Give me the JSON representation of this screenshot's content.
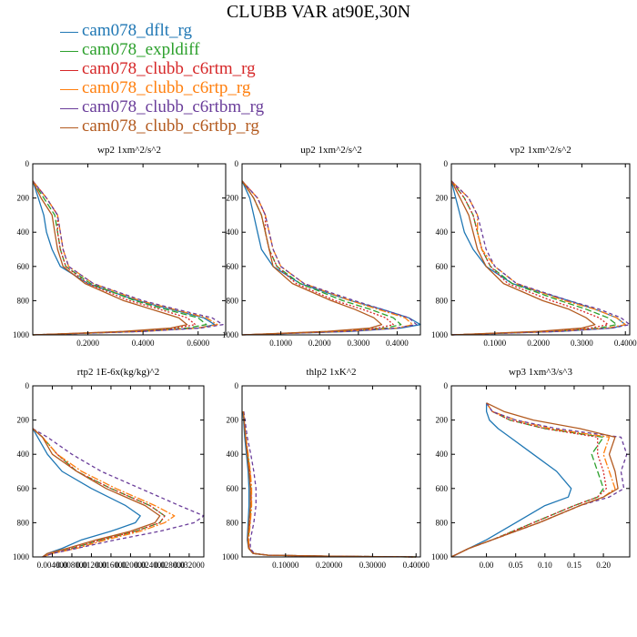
{
  "title": "CLUBB VAR at90E,30N",
  "legend": [
    {
      "name": "cam078_dflt_rg",
      "color": "#1f77b4"
    },
    {
      "name": "cam078_expldiff",
      "color": "#2ca02c"
    },
    {
      "name": "cam078_clubb_c6rtm_rg",
      "color": "#d62728"
    },
    {
      "name": "cam078_clubb_c6rtp_rg",
      "color": "#ff7f0e"
    },
    {
      "name": "cam078_clubb_c6rtbm_rg",
      "color": "#6a3d9a"
    },
    {
      "name": "cam078_clubb_c6rtbp_rg",
      "color": "#b35a1f"
    }
  ],
  "chart_data": [
    {
      "type": "line",
      "title": "wp2 1xm^2/s^2",
      "xlim": [
        0,
        0.7
      ],
      "ylim": [
        0,
        1000
      ],
      "y_inverted": true,
      "xticks": [
        0.2,
        0.4,
        0.6
      ],
      "xtick_labels": [
        "0.2000",
        "0.4000",
        "0.6000"
      ],
      "yticks": [
        0,
        200,
        400,
        600,
        800,
        1000
      ],
      "y": [
        100,
        200,
        300,
        400,
        500,
        600,
        700,
        800,
        850,
        900,
        940,
        960,
        980,
        1000
      ],
      "series": [
        {
          "values": [
            0.0,
            0.02,
            0.04,
            0.05,
            0.07,
            0.1,
            0.2,
            0.38,
            0.5,
            0.62,
            0.66,
            0.6,
            0.4,
            0.0
          ]
        },
        {
          "values": [
            0.0,
            0.04,
            0.08,
            0.09,
            0.1,
            0.12,
            0.21,
            0.37,
            0.48,
            0.6,
            0.63,
            0.56,
            0.38,
            0.0
          ]
        },
        {
          "values": [
            0.0,
            0.05,
            0.09,
            0.09,
            0.1,
            0.12,
            0.2,
            0.35,
            0.46,
            0.56,
            0.59,
            0.52,
            0.35,
            0.0
          ]
        },
        {
          "values": [
            0.0,
            0.05,
            0.09,
            0.1,
            0.11,
            0.13,
            0.22,
            0.39,
            0.51,
            0.63,
            0.67,
            0.6,
            0.4,
            0.0
          ]
        },
        {
          "values": [
            0.0,
            0.05,
            0.09,
            0.1,
            0.11,
            0.13,
            0.22,
            0.4,
            0.52,
            0.65,
            0.69,
            0.61,
            0.4,
            0.0
          ]
        },
        {
          "values": [
            0.0,
            0.03,
            0.07,
            0.08,
            0.09,
            0.11,
            0.19,
            0.33,
            0.43,
            0.53,
            0.56,
            0.5,
            0.33,
            0.0
          ]
        }
      ]
    },
    {
      "type": "line",
      "title": "up2 1xm^2/s^2",
      "xlim": [
        0,
        0.46
      ],
      "ylim": [
        0,
        1000
      ],
      "y_inverted": true,
      "xticks": [
        0.1,
        0.2,
        0.3,
        0.4
      ],
      "xtick_labels": [
        "0.1000",
        "0.2000",
        "0.3000",
        "0.4000"
      ],
      "yticks": [
        0,
        200,
        400,
        600,
        800,
        1000
      ],
      "y": [
        100,
        200,
        300,
        400,
        500,
        600,
        700,
        800,
        850,
        900,
        940,
        960,
        980,
        1000
      ],
      "series": [
        {
          "values": [
            0.0,
            0.02,
            0.03,
            0.04,
            0.05,
            0.08,
            0.15,
            0.28,
            0.36,
            0.43,
            0.46,
            0.41,
            0.28,
            0.0
          ]
        },
        {
          "values": [
            0.0,
            0.03,
            0.05,
            0.06,
            0.07,
            0.09,
            0.15,
            0.26,
            0.33,
            0.39,
            0.41,
            0.37,
            0.25,
            0.0
          ]
        },
        {
          "values": [
            0.0,
            0.04,
            0.06,
            0.06,
            0.07,
            0.09,
            0.14,
            0.24,
            0.31,
            0.37,
            0.39,
            0.35,
            0.23,
            0.0
          ]
        },
        {
          "values": [
            0.0,
            0.04,
            0.06,
            0.07,
            0.08,
            0.1,
            0.16,
            0.28,
            0.35,
            0.42,
            0.44,
            0.4,
            0.26,
            0.0
          ]
        },
        {
          "values": [
            0.0,
            0.04,
            0.06,
            0.07,
            0.08,
            0.1,
            0.16,
            0.29,
            0.36,
            0.43,
            0.45,
            0.4,
            0.27,
            0.0
          ]
        },
        {
          "values": [
            0.0,
            0.03,
            0.05,
            0.06,
            0.07,
            0.08,
            0.13,
            0.23,
            0.29,
            0.34,
            0.36,
            0.33,
            0.22,
            0.0
          ]
        }
      ]
    },
    {
      "type": "line",
      "title": "vp2 1xm^2/s^2",
      "xlim": [
        0,
        0.41
      ],
      "ylim": [
        0,
        1000
      ],
      "y_inverted": true,
      "xticks": [
        0.1,
        0.2,
        0.3,
        0.4
      ],
      "xtick_labels": [
        "0.1000",
        "0.2000",
        "0.3000",
        "0.4000"
      ],
      "yticks": [
        0,
        200,
        400,
        600,
        800,
        1000
      ],
      "y": [
        100,
        200,
        300,
        400,
        500,
        600,
        700,
        800,
        850,
        900,
        940,
        960,
        980,
        1000
      ],
      "series": [
        {
          "values": [
            0.0,
            0.01,
            0.02,
            0.03,
            0.05,
            0.08,
            0.14,
            0.27,
            0.33,
            0.38,
            0.4,
            0.37,
            0.25,
            0.0
          ]
        },
        {
          "values": [
            0.0,
            0.03,
            0.05,
            0.06,
            0.07,
            0.09,
            0.14,
            0.25,
            0.31,
            0.36,
            0.38,
            0.34,
            0.23,
            0.0
          ]
        },
        {
          "values": [
            0.0,
            0.03,
            0.05,
            0.06,
            0.07,
            0.09,
            0.13,
            0.23,
            0.29,
            0.34,
            0.36,
            0.32,
            0.21,
            0.0
          ]
        },
        {
          "values": [
            0.0,
            0.04,
            0.06,
            0.06,
            0.07,
            0.1,
            0.15,
            0.26,
            0.33,
            0.38,
            0.4,
            0.36,
            0.24,
            0.0
          ]
        },
        {
          "values": [
            0.0,
            0.04,
            0.06,
            0.07,
            0.08,
            0.1,
            0.15,
            0.27,
            0.34,
            0.39,
            0.41,
            0.37,
            0.25,
            0.0
          ]
        },
        {
          "values": [
            0.0,
            0.02,
            0.04,
            0.05,
            0.06,
            0.08,
            0.12,
            0.21,
            0.27,
            0.31,
            0.33,
            0.3,
            0.2,
            0.0
          ]
        }
      ]
    },
    {
      "type": "line",
      "title": "rtp2 1E-6x(kg/kg)^2",
      "xlim": [
        0,
        0.035
      ],
      "ylim": [
        0,
        1000
      ],
      "y_inverted": true,
      "xticks": [
        0.004,
        0.008,
        0.012,
        0.016,
        0.02,
        0.024,
        0.028,
        0.032
      ],
      "xtick_labels": [
        "0.004000",
        "0.008000",
        "0.012000",
        "0.016000",
        "0.020000",
        "0.024000",
        "0.028000",
        "0.032000"
      ],
      "yticks": [
        0,
        200,
        400,
        600,
        800,
        1000
      ],
      "y": [
        250,
        300,
        400,
        500,
        600,
        700,
        760,
        800,
        850,
        900,
        950,
        980,
        1000
      ],
      "series": [
        {
          "values": [
            0.0,
            0.001,
            0.003,
            0.006,
            0.012,
            0.019,
            0.022,
            0.021,
            0.016,
            0.01,
            0.006,
            0.003,
            0.002
          ]
        },
        {
          "values": [
            0.0,
            0.002,
            0.005,
            0.009,
            0.016,
            0.024,
            0.027,
            0.026,
            0.021,
            0.014,
            0.008,
            0.004,
            0.002
          ]
        },
        {
          "values": [
            0.0,
            0.002,
            0.005,
            0.009,
            0.016,
            0.024,
            0.027,
            0.026,
            0.021,
            0.014,
            0.008,
            0.004,
            0.002
          ]
        },
        {
          "values": [
            0.0,
            0.002,
            0.005,
            0.01,
            0.017,
            0.025,
            0.029,
            0.027,
            0.022,
            0.015,
            0.009,
            0.004,
            0.002
          ]
        },
        {
          "values": [
            0.0,
            0.003,
            0.008,
            0.014,
            0.022,
            0.03,
            0.035,
            0.033,
            0.026,
            0.017,
            0.009,
            0.004,
            0.002
          ]
        },
        {
          "values": [
            0.0,
            0.002,
            0.004,
            0.009,
            0.015,
            0.023,
            0.026,
            0.025,
            0.02,
            0.013,
            0.007,
            0.003,
            0.002
          ]
        }
      ]
    },
    {
      "type": "line",
      "title": "thlp2 1xK^2",
      "xlim": [
        0,
        0.41
      ],
      "ylim": [
        0,
        1000
      ],
      "y_inverted": true,
      "xticks": [
        0.1,
        0.2,
        0.3,
        0.4
      ],
      "xtick_labels": [
        "0.10000",
        "0.20000",
        "0.30000",
        "0.40000"
      ],
      "yticks": [
        0,
        200,
        400,
        600,
        800,
        1000
      ],
      "y": [
        150,
        300,
        400,
        500,
        600,
        700,
        800,
        900,
        950,
        980,
        990,
        996,
        1000
      ],
      "series": [
        {
          "values": [
            0.002,
            0.006,
            0.01,
            0.014,
            0.016,
            0.016,
            0.014,
            0.012,
            0.015,
            0.025,
            0.06,
            0.2,
            0.4
          ]
        },
        {
          "values": [
            0.003,
            0.008,
            0.013,
            0.018,
            0.02,
            0.02,
            0.018,
            0.014,
            0.016,
            0.026,
            0.06,
            0.2,
            0.4
          ]
        },
        {
          "values": [
            0.003,
            0.008,
            0.013,
            0.018,
            0.021,
            0.021,
            0.018,
            0.014,
            0.016,
            0.026,
            0.06,
            0.2,
            0.4
          ]
        },
        {
          "values": [
            0.003,
            0.009,
            0.014,
            0.019,
            0.022,
            0.022,
            0.019,
            0.015,
            0.017,
            0.027,
            0.06,
            0.2,
            0.4
          ]
        },
        {
          "values": [
            0.004,
            0.012,
            0.02,
            0.027,
            0.032,
            0.032,
            0.027,
            0.019,
            0.019,
            0.028,
            0.06,
            0.2,
            0.4
          ]
        },
        {
          "values": [
            0.003,
            0.008,
            0.012,
            0.016,
            0.019,
            0.019,
            0.016,
            0.013,
            0.015,
            0.025,
            0.06,
            0.2,
            0.4
          ]
        }
      ]
    },
    {
      "type": "line",
      "title": "wp3 1xm^3/s^3",
      "xlim": [
        -0.06,
        0.245
      ],
      "ylim": [
        0,
        1000
      ],
      "y_inverted": true,
      "xticks": [
        0.0,
        0.05,
        0.1,
        0.15,
        0.2
      ],
      "xtick_labels": [
        "0.00",
        "0.05",
        "0.10",
        "0.15",
        "0.20"
      ],
      "yticks": [
        0,
        200,
        400,
        600,
        800,
        1000
      ],
      "y": [
        100,
        150,
        200,
        250,
        300,
        400,
        500,
        600,
        650,
        700,
        800,
        900,
        950,
        1000
      ],
      "series": [
        {
          "values": [
            0.0,
            0.0,
            0.005,
            0.02,
            0.04,
            0.08,
            0.12,
            0.145,
            0.14,
            0.1,
            0.05,
            0.0,
            -0.03,
            -0.06
          ]
        },
        {
          "values": [
            0.0,
            0.01,
            0.04,
            0.1,
            0.2,
            0.18,
            0.19,
            0.2,
            0.19,
            0.15,
            0.08,
            0.01,
            -0.03,
            -0.06
          ]
        },
        {
          "values": [
            0.0,
            0.01,
            0.04,
            0.1,
            0.19,
            0.19,
            0.2,
            0.205,
            0.19,
            0.15,
            0.08,
            0.01,
            -0.03,
            -0.06
          ]
        },
        {
          "values": [
            0.0,
            0.01,
            0.05,
            0.11,
            0.21,
            0.2,
            0.21,
            0.22,
            0.2,
            0.16,
            0.09,
            0.01,
            -0.03,
            -0.06
          ]
        },
        {
          "values": [
            0.0,
            0.01,
            0.05,
            0.12,
            0.23,
            0.24,
            0.23,
            0.235,
            0.21,
            0.16,
            0.09,
            0.01,
            -0.03,
            -0.06
          ]
        },
        {
          "values": [
            0.0,
            0.03,
            0.08,
            0.16,
            0.22,
            0.21,
            0.22,
            0.225,
            0.2,
            0.16,
            0.09,
            0.01,
            -0.03,
            -0.06
          ]
        }
      ]
    }
  ]
}
